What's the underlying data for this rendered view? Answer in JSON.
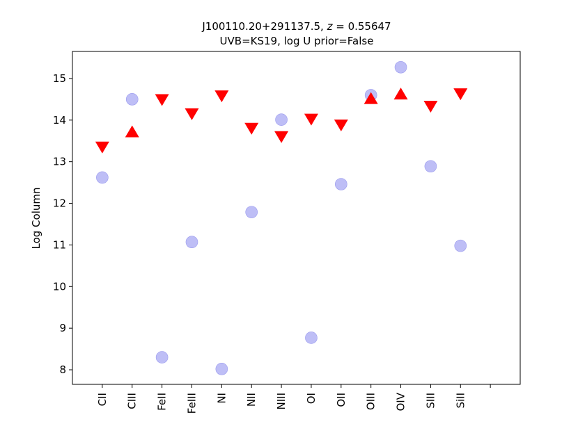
{
  "chart_data": {
    "type": "scatter",
    "title_line1_prefix": "J100110.20+291137.5, ",
    "title_line1_z": "z",
    "title_line1_suffix": " = 0.55647",
    "title_line2": "UVB=KS19, log U prior=False",
    "xlabel": "",
    "ylabel": "Log Column",
    "ylim": [
      7.65,
      15.65
    ],
    "yticks": [
      8,
      9,
      10,
      11,
      12,
      13,
      14,
      15
    ],
    "categories": [
      "CII",
      "CIII",
      "FeII",
      "FeIII",
      "NI",
      "NII",
      "NIII",
      "OI",
      "OII",
      "OIII",
      "OIV",
      "SIII",
      "SiII"
    ],
    "grid": false,
    "legend": "none",
    "series": [
      {
        "marker": "circle",
        "color": "#b3b3f5",
        "points": [
          {
            "x": "CII",
            "y": 12.62
          },
          {
            "x": "CIII",
            "y": 14.5
          },
          {
            "x": "FeII",
            "y": 8.3
          },
          {
            "x": "FeIII",
            "y": 11.07
          },
          {
            "x": "NI",
            "y": 8.02
          },
          {
            "x": "NII",
            "y": 11.79
          },
          {
            "x": "NIII",
            "y": 14.01
          },
          {
            "x": "OI",
            "y": 8.77
          },
          {
            "x": "OII",
            "y": 12.46
          },
          {
            "x": "OIII",
            "y": 14.6
          },
          {
            "x": "OIV",
            "y": 15.27
          },
          {
            "x": "SIII",
            "y": 12.89
          },
          {
            "x": "SiII",
            "y": 10.98
          }
        ]
      },
      {
        "marker": "triangle-down",
        "color": "#ff0000",
        "points": [
          {
            "x": "CII",
            "y": 13.35
          },
          {
            "x": "FeII",
            "y": 14.49
          },
          {
            "x": "FeIII",
            "y": 14.15
          },
          {
            "x": "NI",
            "y": 14.58
          },
          {
            "x": "NII",
            "y": 13.8
          },
          {
            "x": "NIII",
            "y": 13.6
          },
          {
            "x": "OI",
            "y": 14.02
          },
          {
            "x": "OII",
            "y": 13.88
          },
          {
            "x": "SIII",
            "y": 14.33
          },
          {
            "x": "SiII",
            "y": 14.63
          }
        ]
      },
      {
        "marker": "triangle-up",
        "color": "#ff0000",
        "points": [
          {
            "x": "CIII",
            "y": 13.72
          },
          {
            "x": "OIII",
            "y": 14.52
          },
          {
            "x": "OIV",
            "y": 14.63
          }
        ]
      }
    ]
  }
}
